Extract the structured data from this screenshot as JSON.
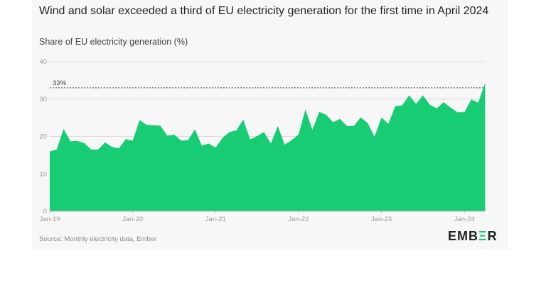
{
  "chart_data": {
    "type": "area",
    "title": "Wind and solar exceeded a third of EU electricity generation for the first time in April 2024",
    "subtitle": "Share of EU electricity generation (%)",
    "source": "Source: Monthly electricity data, Ember",
    "logo": "EMBER",
    "xlabel": "",
    "ylabel": "",
    "ylim": [
      0,
      40
    ],
    "yticks": [
      0,
      10,
      20,
      30,
      40
    ],
    "xtick_labels": [
      "Jan-19",
      "Jan-20",
      "Jan-21",
      "Jan-22",
      "Jan-23",
      "Jan-24"
    ],
    "start_month": "Jan-19",
    "grid": true,
    "reference_line": {
      "value": 33,
      "label": "33%"
    },
    "color": "#18cc73",
    "values": [
      16,
      16.5,
      22,
      18.7,
      18.8,
      18.2,
      16.5,
      16.5,
      18.4,
      17.2,
      16.8,
      19.3,
      18.8,
      24.4,
      23.1,
      23,
      22.9,
      20.2,
      20.5,
      18.9,
      19,
      21.9,
      17.6,
      18.1,
      17,
      19.6,
      21.2,
      21.6,
      24.5,
      19.2,
      20.1,
      21.2,
      18.1,
      22.8,
      17.8,
      19,
      20.5,
      27.2,
      21.8,
      26.6,
      25.8,
      23.8,
      24.7,
      22.8,
      22.8,
      25.1,
      23.6,
      19.9,
      25.1,
      23.4,
      28.1,
      28.3,
      31,
      28.7,
      31,
      28.5,
      27.5,
      29.2,
      27.7,
      26.5,
      26.5,
      29.9,
      29,
      34.3
    ]
  }
}
